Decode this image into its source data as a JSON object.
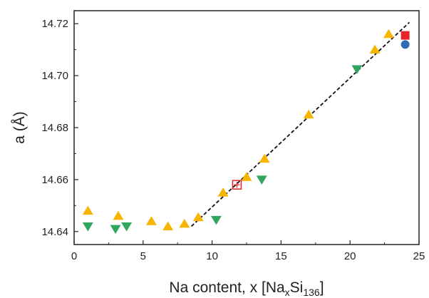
{
  "chart_data": {
    "type": "scatter",
    "xlabel": {
      "main": "Na content, x [Na",
      "sub1": "x",
      "mid": "Si",
      "sub2": "136",
      "end": "]"
    },
    "ylabel": "a (Å)",
    "xlim": [
      0,
      25
    ],
    "ylim": [
      14.635,
      14.725
    ],
    "xticks": [
      0,
      5,
      10,
      15,
      20,
      25
    ],
    "yticks": [
      14.64,
      14.66,
      14.68,
      14.7,
      14.72
    ],
    "ytick_labels": [
      "14.64",
      "14.66",
      "14.68",
      "14.70",
      "14.72"
    ],
    "grid": false,
    "colors": {
      "orange": "#f7b500",
      "green": "#2fa55e",
      "red": "#e8242a",
      "blue": "#2e6db4",
      "line": "#111111"
    },
    "series": [
      {
        "marker": "triangle-up",
        "color": "orange",
        "x": [
          1.0,
          3.2,
          5.6,
          6.8,
          8.0,
          9.0,
          10.8,
          12.5,
          13.8,
          17.0,
          21.8,
          22.8
        ],
        "y": [
          14.648,
          14.646,
          14.644,
          14.642,
          14.643,
          14.6455,
          14.655,
          14.661,
          14.668,
          14.685,
          14.71,
          14.716
        ]
      },
      {
        "marker": "triangle-down",
        "color": "green",
        "x": [
          1.0,
          3.0,
          3.8,
          10.3,
          13.6,
          20.5
        ],
        "y": [
          14.642,
          14.641,
          14.642,
          14.6445,
          14.66,
          14.7025
        ]
      },
      {
        "marker": "open-square-cross",
        "color": "red",
        "x": [
          11.8
        ],
        "y": [
          14.658
        ]
      },
      {
        "marker": "square",
        "color": "red",
        "x": [
          24.0
        ],
        "y": [
          14.7155
        ]
      },
      {
        "marker": "circle",
        "color": "blue",
        "x": [
          24.0
        ],
        "y": [
          14.712
        ]
      }
    ],
    "fit_line": {
      "style": "dashed",
      "x": [
        8.5,
        24.3
      ],
      "y": [
        14.642,
        14.7205
      ]
    }
  }
}
